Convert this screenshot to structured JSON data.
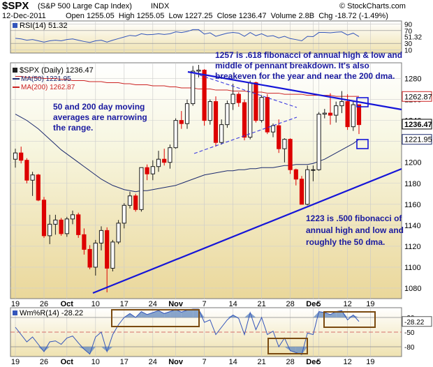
{
  "header": {
    "symbol": "$SPX",
    "name": "(S&P 500 Large Cap Index)",
    "exchange": "INDX",
    "credit": "© StockCharts.com",
    "date": "12-Dec-2011",
    "open_label": "Open",
    "open": "1255.05",
    "high_label": "High",
    "high": "1255.05",
    "low_label": "Low",
    "low": "1227.25",
    "close_label": "Close",
    "close": "1236.47",
    "volume_label": "Volume",
    "volume": "2.8B",
    "chg_label": "Chg",
    "chg": "-18.72 (-1.49%)"
  },
  "rsi": {
    "legend": "RSI(14) 51.32",
    "ticks": [
      "90",
      "70",
      "51.32",
      "30",
      "10"
    ]
  },
  "price": {
    "legend_main": "$SPX (Daily) 1236.47",
    "legend_ma50": "MA(50) 1221.95",
    "legend_ma200": "MA(200) 1262.87",
    "ticks": [
      "1280",
      "1260",
      "1240",
      "1220",
      "1200",
      "1180",
      "1160",
      "1140",
      "1120",
      "1100",
      "1080"
    ],
    "badges": [
      "1262.87",
      "1236.47",
      "1221.95"
    ]
  },
  "annotations": {
    "a1": [
      "1257 is .618 fibonacci of annual high & low and",
      "middle of pennant breakdown. It's also",
      "breakeven for the year and near the 200 dma."
    ],
    "a2": [
      "50 and 200 day moving",
      "averages are narrowing",
      "the range."
    ],
    "a3": [
      "1223 is .500 fibonacci of",
      "annual high and low and",
      "roughly the 50 dma."
    ]
  },
  "willr": {
    "legend": "Wm%R(14) -28.22",
    "ticks": [
      "-20",
      "-50",
      "-80"
    ],
    "badge": "-28.22"
  },
  "xaxis": {
    "labels": [
      "19",
      "26",
      "Oct",
      "10",
      "17",
      "24",
      "Nov",
      "7",
      "14",
      "21",
      "28",
      "Dec",
      "5",
      "12",
      "19"
    ]
  },
  "colors": {
    "up": "#1a1a1a",
    "down": "#dd0000",
    "ma50": "#1c2a6e",
    "ma200": "#cc2222",
    "trendline": "#0000dd",
    "annotation_text": "#1a1aa0",
    "indicator_line": "#3355bb",
    "indicator_fill": "#6a8fc0",
    "box_border": "#7a4a10"
  },
  "chart_data": {
    "type": "candlestick",
    "y_range": [
      1070,
      1295
    ],
    "series": [
      {
        "name": "$SPX (Daily)",
        "ohlc": [
          [
            1203,
            1213,
            1195,
            1209
          ],
          [
            1209,
            1215,
            1199,
            1202
          ],
          [
            1202,
            1204,
            1180,
            1183
          ],
          [
            1183,
            1191,
            1168,
            1188
          ],
          [
            1188,
            1189,
            1163,
            1164
          ],
          [
            1164,
            1167,
            1128,
            1130
          ],
          [
            1130,
            1150,
            1122,
            1141
          ],
          [
            1141,
            1150,
            1131,
            1145
          ],
          [
            1145,
            1147,
            1130,
            1132
          ],
          [
            1132,
            1148,
            1129,
            1146
          ],
          [
            1146,
            1154,
            1141,
            1150
          ],
          [
            1150,
            1152,
            1128,
            1131
          ],
          [
            1131,
            1137,
            1112,
            1117
          ],
          [
            1117,
            1121,
            1098,
            1100
          ],
          [
            1100,
            1126,
            1092,
            1123
          ],
          [
            1123,
            1139,
            1116,
            1135
          ],
          [
            1135,
            1138,
            1076,
            1099
          ],
          [
            1099,
            1126,
            1096,
            1124
          ],
          [
            1124,
            1145,
            1122,
            1142
          ],
          [
            1142,
            1161,
            1137,
            1159
          ],
          [
            1159,
            1172,
            1156,
            1168
          ],
          [
            1168,
            1170,
            1153,
            1155
          ],
          [
            1155,
            1195,
            1153,
            1195
          ],
          [
            1195,
            1198,
            1183,
            1189
          ],
          [
            1189,
            1202,
            1183,
            1196
          ],
          [
            1196,
            1211,
            1191,
            1203
          ],
          [
            1203,
            1213,
            1197,
            1200
          ],
          [
            1200,
            1217,
            1194,
            1214
          ],
          [
            1214,
            1242,
            1213,
            1240
          ],
          [
            1240,
            1249,
            1232,
            1237
          ],
          [
            1237,
            1260,
            1232,
            1256
          ],
          [
            1256,
            1292,
            1254,
            1287
          ],
          [
            1287,
            1293,
            1281,
            1288
          ],
          [
            1288,
            1289,
            1235,
            1240
          ],
          [
            1240,
            1260,
            1236,
            1258
          ],
          [
            1258,
            1263,
            1215,
            1219
          ],
          [
            1219,
            1241,
            1217,
            1236
          ],
          [
            1236,
            1259,
            1233,
            1256
          ],
          [
            1256,
            1275,
            1250,
            1265
          ],
          [
            1265,
            1267,
            1253,
            1257
          ],
          [
            1257,
            1260,
            1221,
            1224
          ],
          [
            1224,
            1278,
            1222,
            1276
          ],
          [
            1276,
            1277,
            1238,
            1240
          ],
          [
            1240,
            1264,
            1238,
            1262
          ],
          [
            1262,
            1265,
            1227,
            1229
          ],
          [
            1229,
            1237,
            1224,
            1235
          ],
          [
            1235,
            1241,
            1209,
            1213
          ],
          [
            1213,
            1223,
            1200,
            1222
          ],
          [
            1222,
            1223,
            1189,
            1193
          ],
          [
            1193,
            1194,
            1178,
            1184
          ],
          [
            1184,
            1187,
            1160,
            1160
          ],
          [
            1160,
            1197,
            1159,
            1193
          ],
          [
            1193,
            1197,
            1182,
            1193
          ],
          [
            1193,
            1248,
            1192,
            1246
          ],
          [
            1246,
            1251,
            1242,
            1247
          ],
          [
            1247,
            1266,
            1236,
            1245
          ],
          [
            1245,
            1258,
            1238,
            1254
          ],
          [
            1254,
            1268,
            1247,
            1258
          ],
          [
            1258,
            1265,
            1231,
            1234
          ],
          [
            1234,
            1259,
            1230,
            1255
          ],
          [
            1255,
            1255,
            1227,
            1236
          ]
        ]
      },
      {
        "name": "MA(50)",
        "values": [
          1246,
          1243,
          1240,
          1236,
          1232,
          1227,
          1222,
          1217,
          1212,
          1208,
          1204,
          1200,
          1196,
          1192,
          1188,
          1184,
          1181,
          1178,
          1176,
          1174,
          1173,
          1172,
          1173,
          1173,
          1174,
          1175,
          1176,
          1177,
          1178,
          1180,
          1182,
          1184,
          1186,
          1188,
          1189,
          1190,
          1191,
          1192,
          1192,
          1193,
          1193,
          1194,
          1194,
          1195,
          1195,
          1195,
          1196,
          1197,
          1197,
          1198,
          1198,
          1198,
          1199,
          1201,
          1203,
          1206,
          1209,
          1212,
          1215,
          1218,
          1222
        ]
      },
      {
        "name": "MA(200)",
        "values": [
          1282,
          1282,
          1281,
          1281,
          1281,
          1280,
          1280,
          1280,
          1279,
          1279,
          1278,
          1278,
          1278,
          1277,
          1277,
          1277,
          1276,
          1276,
          1276,
          1275,
          1275,
          1274,
          1274,
          1274,
          1273,
          1273,
          1273,
          1272,
          1272,
          1271,
          1271,
          1271,
          1270,
          1270,
          1270,
          1269,
          1269,
          1269,
          1268,
          1268,
          1268,
          1267,
          1267,
          1267,
          1266,
          1266,
          1266,
          1265,
          1265,
          1265,
          1265,
          1264,
          1264,
          1264,
          1264,
          1264,
          1263,
          1263,
          1263,
          1263,
          1263
        ]
      },
      {
        "name": "RSI(14)",
        "values": [
          46,
          44,
          40,
          42,
          38,
          34,
          38,
          40,
          38,
          42,
          44,
          40,
          36,
          33,
          38,
          40,
          34,
          40,
          45,
          50,
          55,
          53,
          60,
          57,
          58,
          60,
          58,
          60,
          66,
          64,
          67,
          73,
          73,
          59,
          63,
          52,
          57,
          62,
          64,
          62,
          52,
          64,
          54,
          60,
          52,
          54,
          47,
          52,
          45,
          42,
          38,
          52,
          51,
          64,
          64,
          63,
          65,
          66,
          56,
          62,
          51.32
        ]
      },
      {
        "name": "Wm%R(14)",
        "values": [
          -40,
          -55,
          -70,
          -60,
          -75,
          -90,
          -70,
          -68,
          -75,
          -62,
          -58,
          -72,
          -85,
          -95,
          -60,
          -50,
          -90,
          -55,
          -35,
          -20,
          -12,
          -20,
          -8,
          -14,
          -10,
          -6,
          -12,
          -8,
          -4,
          -9,
          -5,
          -3,
          -3,
          -30,
          -25,
          -55,
          -40,
          -25,
          -15,
          -22,
          -55,
          -10,
          -45,
          -20,
          -55,
          -48,
          -80,
          -62,
          -88,
          -92,
          -96,
          -52,
          -55,
          -8,
          -10,
          -14,
          -8,
          -6,
          -25,
          -15,
          -28.22
        ]
      }
    ]
  }
}
